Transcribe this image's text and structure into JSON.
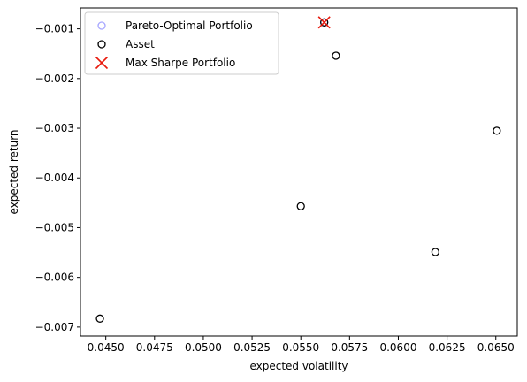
{
  "chart_data": {
    "type": "scatter",
    "title": "",
    "xlabel": "expected volatility",
    "ylabel": "expected return",
    "xlim": [
      0.0437,
      0.0661
    ],
    "ylim": [
      -0.00718,
      -0.00058
    ],
    "xticks": [
      "0.0450",
      "0.0475",
      "0.0500",
      "0.0525",
      "0.0550",
      "0.0575",
      "0.0600",
      "0.0625",
      "0.0650"
    ],
    "yticks": [
      "−0.007",
      "−0.006",
      "−0.005",
      "−0.004",
      "−0.003",
      "−0.002",
      "−0.001"
    ],
    "grid": false,
    "legend_position": "top-left",
    "series": [
      {
        "name": "Pareto-Optimal Portfolio",
        "marker": "open-circle",
        "color": "#8080ff",
        "points": [
          {
            "x": 0.0562,
            "y": -0.00087
          }
        ]
      },
      {
        "name": "Asset",
        "marker": "open-circle",
        "color": "#000000",
        "points": [
          {
            "x": 0.0447,
            "y": -0.00683
          },
          {
            "x": 0.055,
            "y": -0.00457
          },
          {
            "x": 0.0562,
            "y": -0.00087
          },
          {
            "x": 0.0568,
            "y": -0.00154
          },
          {
            "x": 0.0619,
            "y": -0.00549
          },
          {
            "x": 0.06505,
            "y": -0.00305
          }
        ]
      },
      {
        "name": "Max Sharpe Portfolio",
        "marker": "x",
        "color": "#e8190d",
        "points": [
          {
            "x": 0.0562,
            "y": -0.00087
          }
        ]
      }
    ]
  }
}
